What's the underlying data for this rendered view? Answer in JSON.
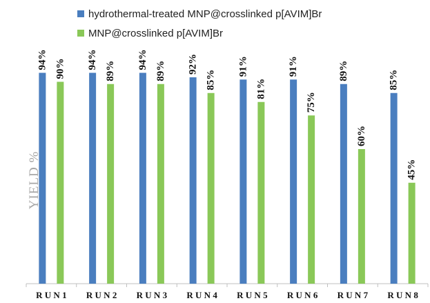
{
  "chart_data": {
    "type": "bar",
    "title": "",
    "xlabel": "",
    "ylabel": "YIELD %",
    "ylim": [
      0,
      100
    ],
    "grid": false,
    "legend_position": "top",
    "categories": [
      "R U N 1",
      "R U N 2",
      "R U N 3",
      "R U N 4",
      "R U N 5",
      "R U N 6",
      "R U N 7",
      "R U N 8"
    ],
    "series": [
      {
        "name": "hydrothermal-treated MNP@crosslinked p[AVIM]Br",
        "color": "#4a7ebf",
        "values": [
          94,
          94,
          94,
          92,
          91,
          91,
          89,
          85
        ],
        "labels": [
          "94%",
          "94%",
          "94%",
          "92%",
          "91%",
          "91%",
          "89%",
          "85%"
        ]
      },
      {
        "name": "MNP@crosslinked p[AVIM]Br",
        "color": "#8ac858",
        "values": [
          90,
          89,
          89,
          85,
          81,
          75,
          60,
          45
        ],
        "labels": [
          "90%",
          "89%",
          "89%",
          "85%",
          "81%",
          "75%",
          "60%",
          "45%"
        ]
      }
    ]
  }
}
